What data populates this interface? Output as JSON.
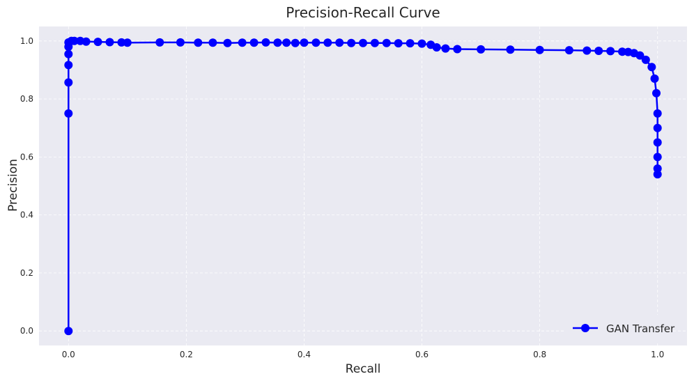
{
  "chart_data": {
    "type": "line",
    "title": "Precision-Recall Curve",
    "xlabel": "Recall",
    "ylabel": "Precision",
    "xlim": [
      -0.05,
      1.05
    ],
    "ylim": [
      -0.05,
      1.05
    ],
    "grid": true,
    "legend_position": "bottom-right",
    "colors": {
      "series": "#0000ff",
      "background": "#eaeaf2",
      "grid": "#ffffff"
    },
    "x_ticks": [
      "0.0",
      "0.2",
      "0.4",
      "0.6",
      "0.8",
      "1.0"
    ],
    "y_ticks": [
      "0.0",
      "0.2",
      "0.4",
      "0.6",
      "0.8",
      "1.0"
    ],
    "series": [
      {
        "name": "GAN Transfer",
        "marker": "circle",
        "x": [
          0.0,
          0.0,
          0.0,
          0.0,
          0.0,
          0.0,
          0.0,
          0.005,
          0.01,
          0.02,
          0.03,
          0.05,
          0.07,
          0.09,
          0.1,
          0.155,
          0.19,
          0.22,
          0.245,
          0.27,
          0.295,
          0.315,
          0.335,
          0.355,
          0.37,
          0.385,
          0.4,
          0.42,
          0.44,
          0.46,
          0.48,
          0.5,
          0.52,
          0.54,
          0.56,
          0.58,
          0.6,
          0.615,
          0.625,
          0.64,
          0.66,
          0.7,
          0.75,
          0.8,
          0.85,
          0.88,
          0.9,
          0.92,
          0.94,
          0.95,
          0.96,
          0.97,
          0.98,
          0.99,
          0.995,
          0.998,
          1.0,
          1.0,
          1.0,
          1.0,
          1.0,
          1.0
        ],
        "y": [
          0.0,
          0.75,
          0.857,
          0.917,
          0.955,
          0.98,
          0.995,
          1.0,
          1.0,
          1.0,
          0.998,
          0.997,
          0.996,
          0.995,
          0.994,
          0.995,
          0.995,
          0.994,
          0.994,
          0.993,
          0.994,
          0.994,
          0.995,
          0.994,
          0.994,
          0.993,
          0.994,
          0.994,
          0.994,
          0.994,
          0.993,
          0.993,
          0.993,
          0.993,
          0.992,
          0.992,
          0.991,
          0.987,
          0.978,
          0.974,
          0.972,
          0.971,
          0.97,
          0.969,
          0.968,
          0.967,
          0.966,
          0.965,
          0.963,
          0.962,
          0.958,
          0.95,
          0.935,
          0.91,
          0.87,
          0.82,
          0.75,
          0.7,
          0.65,
          0.6,
          0.56,
          0.54
        ]
      }
    ]
  }
}
